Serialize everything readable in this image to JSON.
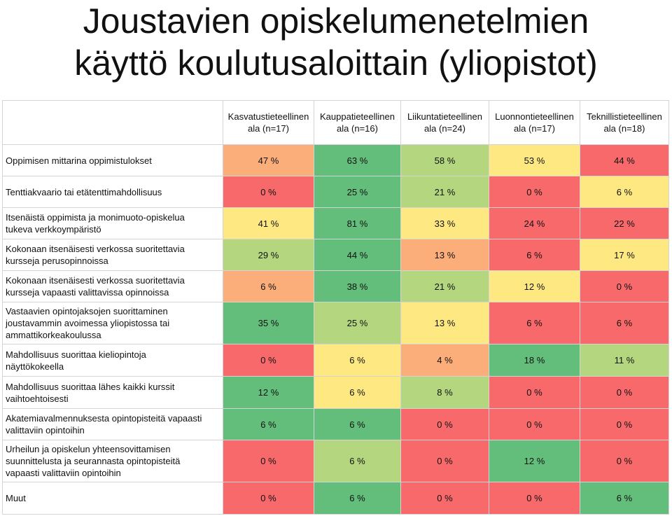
{
  "title": {
    "line1": "Joustavien opiskelumenetelmien",
    "line2": "käyttö koulutusaloittain (yliopistot)"
  },
  "colors": {
    "dark_green": "#63be7b",
    "light_green": "#b3d67e",
    "yellow": "#fee882",
    "orange": "#fbae7a",
    "red": "#f8696b"
  },
  "chart_data": {
    "type": "heatmap",
    "columns": [
      {
        "line1": "Kasvatustieteellinen",
        "line2": "ala (n=17)"
      },
      {
        "line1": "Kauppatieteellinen",
        "line2": "ala (n=16)"
      },
      {
        "line1": "Liikuntatieteellinen",
        "line2": "ala (n=24)"
      },
      {
        "line1": "Luonnontieteellinen",
        "line2": "ala (n=17)"
      },
      {
        "line1": "Teknillistieteellinen",
        "line2": "ala (n=18)"
      }
    ],
    "rows": [
      {
        "label_lines": [
          "Oppimisen mittarina oppimistulokset"
        ],
        "values": [
          47,
          63,
          58,
          53,
          44
        ],
        "display": [
          "47 %",
          "63 %",
          "58 %",
          "53 %",
          "44 %"
        ]
      },
      {
        "label_lines": [
          "Tenttiakvaario tai etätenttimahdollisuus"
        ],
        "values": [
          0,
          25,
          21,
          0,
          6
        ],
        "display": [
          "0 %",
          "25 %",
          "21 %",
          "0 %",
          "6 %"
        ]
      },
      {
        "label_lines": [
          "Itsenäistä oppimista ja monimuoto-opiskelua",
          "tukeva verkkoympäristö"
        ],
        "values": [
          41,
          81,
          33,
          24,
          22
        ],
        "display": [
          "41 %",
          "81 %",
          "33 %",
          "24 %",
          "22 %"
        ]
      },
      {
        "label_lines": [
          "Kokonaan itsenäisesti verkossa suoritettavia",
          "kursseja perusopinnoissa"
        ],
        "values": [
          29,
          44,
          13,
          6,
          17
        ],
        "display": [
          "29 %",
          "44 %",
          "13 %",
          "6 %",
          "17 %"
        ]
      },
      {
        "label_lines": [
          "Kokonaan itsenäisesti verkossa suoritettavia",
          "kursseja vapaasti valittavissa opinnoissa"
        ],
        "values": [
          6,
          38,
          21,
          12,
          0
        ],
        "display": [
          "6 %",
          "38 %",
          "21 %",
          "12 %",
          "0 %"
        ]
      },
      {
        "label_lines": [
          "Vastaavien opintojaksojen suorittaminen",
          "joustavammin avoimessa yliopistossa tai",
          "ammattikorkeakoulussa"
        ],
        "values": [
          35,
          25,
          13,
          6,
          6
        ],
        "display": [
          "35 %",
          "25 %",
          "13 %",
          "6 %",
          "6 %"
        ]
      },
      {
        "label_lines": [
          "Mahdollisuus suorittaa kieliopintoja",
          "näyttökokeella"
        ],
        "values": [
          0,
          6,
          4,
          18,
          11
        ],
        "display": [
          "0 %",
          "6 %",
          "4 %",
          "18 %",
          "11 %"
        ]
      },
      {
        "label_lines": [
          "Mahdollisuus suorittaa lähes kaikki kurssit",
          "vaihtoehtoisesti"
        ],
        "values": [
          12,
          6,
          8,
          0,
          0
        ],
        "display": [
          "12 %",
          "6 %",
          "8 %",
          "0 %",
          "0 %"
        ]
      },
      {
        "label_lines": [
          "Akatemiavalmennuksesta opintopisteitä vapaasti",
          "valittaviin opintoihin"
        ],
        "values": [
          6,
          6,
          0,
          0,
          0
        ],
        "display": [
          "6 %",
          "6 %",
          "0 %",
          "0 %",
          "0 %"
        ]
      },
      {
        "label_lines": [
          "Urheilun ja opiskelun yhteensovittamisen",
          "suunnittelusta ja seurannasta opintopisteitä",
          "vapaasti valittaviin opintoihin"
        ],
        "values": [
          0,
          6,
          0,
          12,
          0
        ],
        "display": [
          "0 %",
          "6 %",
          "0 %",
          "12 %",
          "0 %"
        ]
      },
      {
        "label_lines": [
          "Muut"
        ],
        "values": [
          0,
          6,
          0,
          0,
          6
        ],
        "display": [
          "0 %",
          "6 %",
          "0 %",
          "0 %",
          "6 %"
        ]
      }
    ],
    "cell_colors": [
      [
        "orange",
        "dark_green",
        "light_green",
        "yellow",
        "red"
      ],
      [
        "red",
        "dark_green",
        "light_green",
        "red",
        "yellow"
      ],
      [
        "yellow",
        "dark_green",
        "yellow",
        "red",
        "red"
      ],
      [
        "light_green",
        "dark_green",
        "orange",
        "red",
        "yellow"
      ],
      [
        "orange",
        "dark_green",
        "light_green",
        "yellow",
        "red"
      ],
      [
        "dark_green",
        "light_green",
        "yellow",
        "red",
        "red"
      ],
      [
        "red",
        "yellow",
        "orange",
        "dark_green",
        "light_green"
      ],
      [
        "dark_green",
        "yellow",
        "light_green",
        "red",
        "red"
      ],
      [
        "dark_green",
        "dark_green",
        "red",
        "red",
        "red"
      ],
      [
        "red",
        "light_green",
        "red",
        "dark_green",
        "red"
      ],
      [
        "red",
        "dark_green",
        "red",
        "red",
        "dark_green"
      ]
    ]
  }
}
